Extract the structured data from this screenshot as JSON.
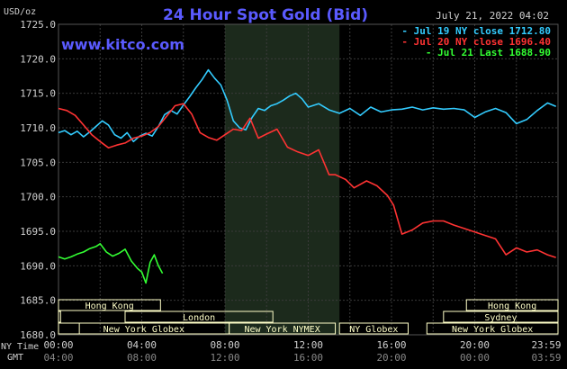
{
  "chart_data": {
    "type": "line",
    "title": "24 Hour Spot Gold (Bid)",
    "watermark": "www.kitco.com",
    "date_label": "July 21, 2022 04:02",
    "y_unit": "USD/oz",
    "ylim": [
      1680,
      1725
    ],
    "yticks": [
      "1725.0",
      "1720.0",
      "1715.0",
      "1710.0",
      "1705.0",
      "1700.0",
      "1695.0",
      "1690.0",
      "1685.0",
      "1680.0"
    ],
    "ny_time_label": "NY Time",
    "gmt_label": "GMT",
    "x_ticks_ny": [
      "00:00",
      "04:00",
      "08:00",
      "12:00",
      "16:00",
      "20:00",
      "23:59"
    ],
    "x_ticks_gmt": [
      "04:00",
      "08:00",
      "12:00",
      "16:00",
      "20:00",
      "00:00",
      "03:59"
    ],
    "grid": true,
    "legend_position": "top-right",
    "colors": {
      "background": "#000000",
      "grid": "#3a3a3a",
      "title": "#5a5aff",
      "watermark": "#5a5aff",
      "text": "#d0d0d0",
      "shade": "#1c2a1c",
      "session_fill": "#ffffc8"
    },
    "series": [
      {
        "name": "Jul 19 NY close 1712.80",
        "color": "#33ccff",
        "x": [
          0,
          0.3,
          0.6,
          0.9,
          1.2,
          1.5,
          1.8,
          2.1,
          2.4,
          2.7,
          3.0,
          3.3,
          3.6,
          3.9,
          4.2,
          4.5,
          4.8,
          5.1,
          5.4,
          5.7,
          6.0,
          6.3,
          6.6,
          6.9,
          7.2,
          7.5,
          7.8,
          8.1,
          8.4,
          8.7,
          9.0,
          9.3,
          9.6,
          9.9,
          10.2,
          10.5,
          10.8,
          11.1,
          11.4,
          11.7,
          12.0,
          12.5,
          13.0,
          13.5,
          14.0,
          14.5,
          15.0,
          15.5,
          16.0,
          16.5,
          17.0,
          17.5,
          18.0,
          18.5,
          19.0,
          19.5,
          20.0,
          20.5,
          21.0,
          21.5,
          22.0,
          22.5,
          23.0,
          23.5,
          23.9
        ],
        "values": [
          1709.3,
          1709.6,
          1709.0,
          1709.5,
          1708.7,
          1709.4,
          1710.2,
          1711.0,
          1710.4,
          1709.0,
          1708.5,
          1709.3,
          1708.0,
          1708.8,
          1709.2,
          1708.8,
          1710.2,
          1711.9,
          1712.5,
          1712.0,
          1713.3,
          1714.5,
          1715.8,
          1717.0,
          1718.4,
          1717.2,
          1716.2,
          1714.0,
          1711.0,
          1710.0,
          1709.7,
          1711.5,
          1712.8,
          1712.5,
          1713.2,
          1713.5,
          1714.0,
          1714.6,
          1715.0,
          1714.2,
          1713.0,
          1713.5,
          1712.6,
          1712.1,
          1712.8,
          1711.8,
          1713.0,
          1712.3,
          1712.6,
          1712.7,
          1713.0,
          1712.6,
          1712.9,
          1712.7,
          1712.8,
          1712.6,
          1711.5,
          1712.3,
          1712.8,
          1712.2,
          1710.6,
          1711.2,
          1712.5,
          1713.6,
          1713.1
        ]
      },
      {
        "name": "Jul 20 NY close 1696.40",
        "color": "#ff3333",
        "x": [
          0,
          0.4,
          0.8,
          1.2,
          1.6,
          2.0,
          2.4,
          2.8,
          3.2,
          3.6,
          4.0,
          4.4,
          4.8,
          5.2,
          5.6,
          6.0,
          6.4,
          6.8,
          7.2,
          7.6,
          8.0,
          8.4,
          8.8,
          9.2,
          9.6,
          10.0,
          10.5,
          11.0,
          11.5,
          12.0,
          12.5,
          13.0,
          13.3,
          13.8,
          14.2,
          14.8,
          15.3,
          15.8,
          16.1,
          16.5,
          17.0,
          17.5,
          18.0,
          18.5,
          19.0,
          19.5,
          20.0,
          20.5,
          21.0,
          21.5,
          22.0,
          22.5,
          23.0,
          23.5,
          23.9
        ],
        "values": [
          1712.8,
          1712.5,
          1711.8,
          1710.4,
          1709.0,
          1708.0,
          1707.1,
          1707.5,
          1707.8,
          1708.5,
          1708.8,
          1709.3,
          1710.2,
          1711.7,
          1713.2,
          1713.5,
          1712.0,
          1709.3,
          1708.6,
          1708.2,
          1709.0,
          1709.8,
          1709.6,
          1711.4,
          1708.5,
          1709.1,
          1709.8,
          1707.2,
          1706.5,
          1706.0,
          1706.8,
          1703.2,
          1703.2,
          1702.5,
          1701.3,
          1702.3,
          1701.6,
          1700.2,
          1698.8,
          1694.6,
          1695.2,
          1696.2,
          1696.5,
          1696.5,
          1695.9,
          1695.4,
          1694.9,
          1694.4,
          1693.9,
          1691.6,
          1692.6,
          1692.0,
          1692.3,
          1691.6,
          1691.2
        ]
      },
      {
        "name": "Jul 21 Last 1688.90",
        "color": "#33ff33",
        "x": [
          0,
          0.3,
          0.6,
          0.9,
          1.2,
          1.5,
          1.8,
          2.0,
          2.3,
          2.6,
          2.9,
          3.2,
          3.5,
          3.8,
          4.0,
          4.2,
          4.4,
          4.6,
          4.8,
          5.0
        ],
        "values": [
          1691.3,
          1691.0,
          1691.3,
          1691.7,
          1692.0,
          1692.5,
          1692.8,
          1693.2,
          1692.0,
          1691.4,
          1691.8,
          1692.4,
          1690.7,
          1689.6,
          1689.1,
          1687.5,
          1690.5,
          1691.6,
          1690.0,
          1688.9
        ]
      }
    ],
    "shaded_region": {
      "from": 8.0,
      "to": 13.5
    },
    "sessions_row3": [
      {
        "label": "Hong Kong",
        "from": 0,
        "to": 4.9
      },
      {
        "label": "Hong Kong",
        "from": 19.6,
        "to": 24
      }
    ],
    "sessions_row2": [
      {
        "label": "",
        "from": 0,
        "to": 0.1
      },
      {
        "label": "London",
        "from": 3.2,
        "to": 10.3
      },
      {
        "label": "Sydney",
        "from": 18.5,
        "to": 24
      }
    ],
    "sessions_row1": [
      {
        "label": "",
        "from": 0,
        "to": 1.0
      },
      {
        "label": "New York Globex",
        "from": 0,
        "to": 8.2
      },
      {
        "label": "New York NYMEX",
        "from": 8.2,
        "to": 13.3
      },
      {
        "label": "NY Globex",
        "from": 13.5,
        "to": 16.8
      },
      {
        "label": "New York Globex",
        "from": 17.7,
        "to": 24
      }
    ]
  }
}
